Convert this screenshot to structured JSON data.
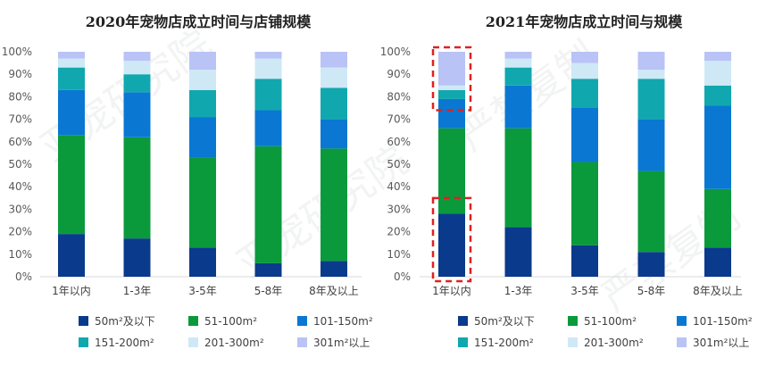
{
  "colors": {
    "50m²及以下": "#0a3a8c",
    "51-100m²": "#0a9a3c",
    "101-150m²": "#0a78d2",
    "151-200m²": "#10a8ae",
    "201-300m²": "#cfe8f6",
    "301m²以上": "#b9c3f5",
    "axis": "#d9d9d9",
    "highlight": "#e02020"
  },
  "legend_labels": [
    "50m²及以下",
    "51-100m²",
    "101-150m²",
    "151-200m²",
    "201-300m²",
    "301m²以上"
  ],
  "watermark": [
    "亚宠研究院",
    "严禁复制"
  ],
  "chart_data": [
    {
      "type": "bar",
      "stacked": true,
      "title": "2020年宠物店成立时间与店铺规模",
      "categories": [
        "1年以内",
        "1-3年",
        "3-5年",
        "5-8年",
        "8年及以上"
      ],
      "yticks": [
        "0%",
        "10%",
        "20%",
        "30%",
        "40%",
        "50%",
        "60%",
        "70%",
        "80%",
        "90%",
        "100%"
      ],
      "ylim": [
        0,
        100
      ],
      "legend_position": "bottom",
      "grid": false,
      "series": [
        {
          "name": "50m²及以下",
          "values": [
            19,
            17,
            13,
            6,
            7
          ]
        },
        {
          "name": "51-100m²",
          "values": [
            44,
            45,
            40,
            52,
            50
          ]
        },
        {
          "name": "101-150m²",
          "values": [
            20,
            20,
            18,
            16,
            13
          ]
        },
        {
          "name": "151-200m²",
          "values": [
            10,
            8,
            12,
            14,
            14
          ]
        },
        {
          "name": "201-300m²",
          "values": [
            4,
            6,
            9,
            9,
            9
          ]
        },
        {
          "name": "301m²以上",
          "values": [
            3,
            4,
            8,
            3,
            7
          ]
        }
      ]
    },
    {
      "type": "bar",
      "stacked": true,
      "title": "2021年宠物店成立时间与规模",
      "categories": [
        "1年以内",
        "1-3年",
        "3-5年",
        "5-8年",
        "8年及以上"
      ],
      "yticks": [
        "0%",
        "10%",
        "20%",
        "30%",
        "40%",
        "50%",
        "60%",
        "70%",
        "80%",
        "90%",
        "100%"
      ],
      "ylim": [
        0,
        100
      ],
      "legend_position": "bottom",
      "grid": false,
      "series": [
        {
          "name": "50m²及以下",
          "values": [
            28,
            22,
            14,
            11,
            13
          ]
        },
        {
          "name": "51-100m²",
          "values": [
            38,
            44,
            37,
            36,
            26
          ]
        },
        {
          "name": "101-150m²",
          "values": [
            13,
            19,
            24,
            23,
            37
          ]
        },
        {
          "name": "151-200m²",
          "values": [
            4,
            8,
            13,
            18,
            9
          ]
        },
        {
          "name": "201-300m²",
          "values": [
            2,
            4,
            7,
            4,
            11
          ]
        },
        {
          "name": "301m²以上",
          "values": [
            15,
            3,
            5,
            8,
            4
          ]
        }
      ],
      "highlights": [
        {
          "category": "1年以内",
          "from": 76,
          "to": 100
        },
        {
          "category": "1年以内",
          "from": 0,
          "to": 33
        }
      ]
    }
  ]
}
